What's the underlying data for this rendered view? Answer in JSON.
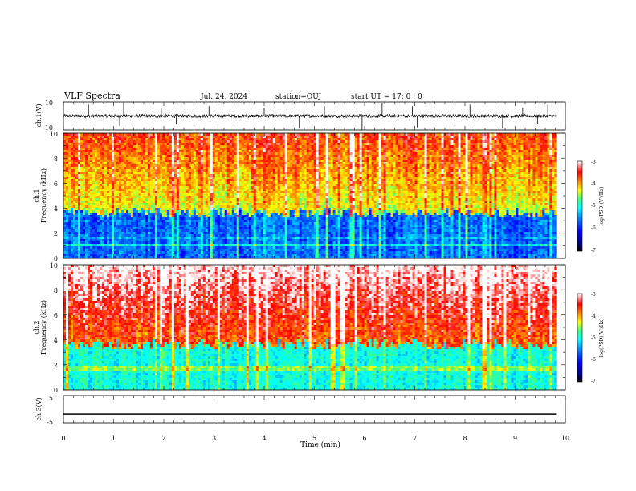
{
  "header": {
    "title": "VLF Spectra",
    "date": "Jul. 24, 2024",
    "station": "station=OUJ",
    "start": "start UT =  17: 0  : 0"
  },
  "chart_data": [
    {
      "type": "line",
      "name": "waveform-ch1",
      "ylabel": "ch.1(V)",
      "ylim": [
        -10,
        10
      ],
      "ytick_labels": [
        "10",
        "-10"
      ],
      "xlim": [
        0,
        10
      ],
      "x_end": 9.83,
      "baseline": 0,
      "noise_amplitude": 1.2,
      "spikes": [
        {
          "x": 0.5,
          "y": 8
        },
        {
          "x": 1.12,
          "y": -7
        },
        {
          "x": 1.2,
          "y": 9
        },
        {
          "x": 1.95,
          "y": 6
        },
        {
          "x": 2.25,
          "y": -6
        },
        {
          "x": 2.9,
          "y": 7
        },
        {
          "x": 4.0,
          "y": 6
        },
        {
          "x": 4.7,
          "y": -9
        },
        {
          "x": 5.2,
          "y": 7
        },
        {
          "x": 5.95,
          "y": -10
        },
        {
          "x": 6.35,
          "y": 9
        },
        {
          "x": 6.95,
          "y": 7
        },
        {
          "x": 7.05,
          "y": -8
        },
        {
          "x": 8.1,
          "y": 8
        },
        {
          "x": 8.75,
          "y": -9
        },
        {
          "x": 9.15,
          "y": 6
        },
        {
          "x": 9.45,
          "y": -6
        },
        {
          "x": 9.65,
          "y": 8
        }
      ]
    },
    {
      "type": "heatmap",
      "name": "spectrogram-ch1",
      "ylabel": "ch.1",
      "ylabel2": "Frequency (kHz)",
      "ylim": [
        0,
        10
      ],
      "ytick_labels": [
        "0",
        "2",
        "4",
        "6",
        "8",
        "10"
      ],
      "xlim": [
        0,
        10
      ],
      "x_end": 9.83,
      "dominant_top": "green-yellow-orange",
      "dominant_bottom": "blue (below ~4 kHz)",
      "colorbar": {
        "label": "log(PSD)(V²/Hz)",
        "range": [
          -7,
          -3
        ],
        "tick_labels": [
          "-3",
          "-4",
          "-5",
          "-6",
          "-7"
        ]
      }
    },
    {
      "type": "heatmap",
      "name": "spectrogram-ch2",
      "ylabel": "ch.2",
      "ylabel2": "Frequency (kHz)",
      "ylim": [
        0,
        10
      ],
      "ytick_labels": [
        "0",
        "2",
        "4",
        "6",
        "8",
        "10"
      ],
      "xlim": [
        0,
        10
      ],
      "x_end": 9.83,
      "dominant_top": "red-orange",
      "dominant_bottom": "cyan-blue (below ~4 kHz)",
      "colorbar": {
        "label": "log(PSD)(V²/Hz)",
        "range": [
          -7,
          -3
        ],
        "tick_labels": [
          "-3",
          "-4",
          "-5",
          "-6",
          "-7"
        ]
      }
    },
    {
      "type": "line",
      "name": "waveform-ch3",
      "ylabel": "ch.3(V)",
      "ylim": [
        -5,
        5
      ],
      "ytick_labels": [
        "5",
        "-5"
      ],
      "xlim": [
        0,
        10
      ],
      "x_end": 9.83,
      "baseline": -1.8
    }
  ],
  "xaxis": {
    "label": "Time (min)",
    "tick_labels": [
      "0",
      "1",
      "2",
      "3",
      "4",
      "5",
      "6",
      "7",
      "8",
      "9",
      "10"
    ]
  },
  "colors": {
    "colormap": [
      "#000083",
      "#0000ff",
      "#0080ff",
      "#00ffff",
      "#40ff80",
      "#ffff00",
      "#ff8000",
      "#ff0000",
      "#ffffff"
    ]
  }
}
